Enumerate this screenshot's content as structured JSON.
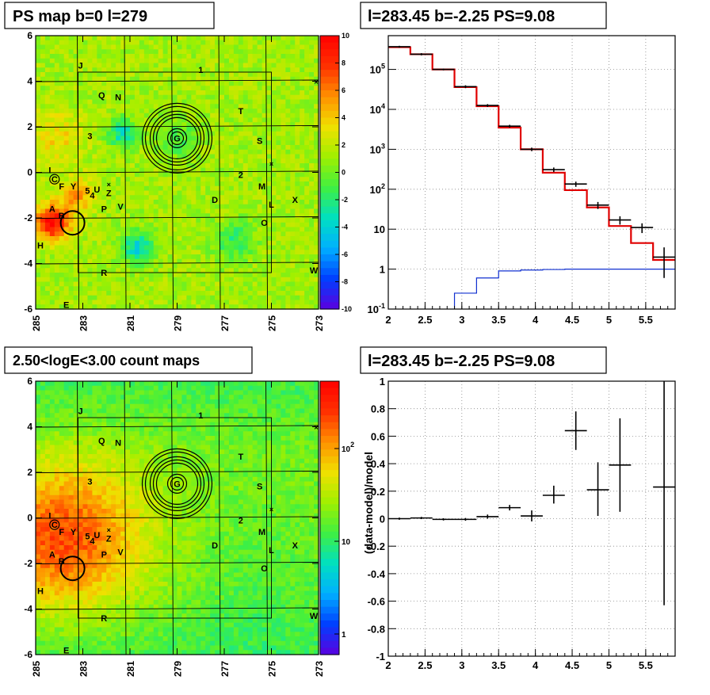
{
  "panels": {
    "tl": {
      "title": "PS map b=0 l=279"
    },
    "tr": {
      "title": "l=283.45 b=-2.25 PS=9.08"
    },
    "bl": {
      "title": "2.50<logE<3.00 count maps"
    },
    "br": {
      "title": "l=283.45 b=-2.25 PS=9.08"
    }
  },
  "chart_data": [
    {
      "type": "heatmap",
      "title": "PS map b=0 l=279",
      "x_ticks": [
        "285",
        "283",
        "281",
        "279",
        "277",
        "275",
        "273"
      ],
      "y_ticks": [
        "6",
        "4",
        "2",
        "0",
        "-2",
        "-4",
        "-6"
      ],
      "xlim": [
        285,
        273
      ],
      "ylim": [
        -6,
        6
      ],
      "colorbar": {
        "min": -10,
        "max": 10,
        "ticks": [
          "10",
          "8",
          "6",
          "4",
          "2",
          "0",
          "-2",
          "-4",
          "-6",
          "-8",
          "-10"
        ]
      },
      "colors": [
        "#5a00e0",
        "#0040ff",
        "#00b0ff",
        "#00e0c0",
        "#40f040",
        "#a0f000",
        "#f0e000",
        "#ff9000",
        "#ff3000",
        "#ff0000"
      ],
      "source_labels": [
        {
          "text": "J",
          "l": 283.1,
          "b": 4.7
        },
        {
          "text": "1",
          "l": 278.0,
          "b": 4.5
        },
        {
          "text": "Q",
          "l": 282.2,
          "b": 3.4
        },
        {
          "text": "N",
          "l": 281.5,
          "b": 3.3
        },
        {
          "text": "T",
          "l": 276.3,
          "b": 2.7
        },
        {
          "text": "3",
          "l": 282.7,
          "b": 1.6
        },
        {
          "text": "G",
          "l": 279.0,
          "b": 1.5
        },
        {
          "text": "S",
          "l": 275.5,
          "b": 1.4
        },
        {
          "text": "I",
          "l": 284.4,
          "b": 0.1
        },
        {
          "text": "C",
          "l": 284.2,
          "b": -0.3
        },
        {
          "text": "2",
          "l": 276.3,
          "b": -0.1
        },
        {
          "text": "F",
          "l": 283.9,
          "b": -0.6
        },
        {
          "text": "Y",
          "l": 283.4,
          "b": -0.6
        },
        {
          "text": "M",
          "l": 275.4,
          "b": -0.6
        },
        {
          "text": "5",
          "l": 282.8,
          "b": -0.8
        },
        {
          "text": "U",
          "l": 282.4,
          "b": -0.75
        },
        {
          "text": "4",
          "l": 282.6,
          "b": -1.0
        },
        {
          "text": "Z",
          "l": 281.9,
          "b": -0.9
        },
        {
          "text": "D",
          "l": 277.4,
          "b": -1.2
        },
        {
          "text": "L",
          "l": 275.0,
          "b": -1.4
        },
        {
          "text": "X",
          "l": 274.0,
          "b": -1.2
        },
        {
          "text": "P",
          "l": 282.1,
          "b": -1.6
        },
        {
          "text": "V",
          "l": 281.4,
          "b": -1.5
        },
        {
          "text": "A",
          "l": 284.3,
          "b": -1.6
        },
        {
          "text": "B",
          "l": 283.9,
          "b": -1.9
        },
        {
          "text": "O",
          "l": 275.3,
          "b": -2.2
        },
        {
          "text": "H",
          "l": 284.8,
          "b": -3.2
        },
        {
          "text": "R",
          "l": 282.1,
          "b": -4.4
        },
        {
          "text": "W",
          "l": 273.2,
          "b": -4.3
        },
        {
          "text": "E",
          "l": 283.7,
          "b": -5.8
        }
      ],
      "circles": [
        {
          "l": 279.0,
          "b": 1.5
        },
        {
          "l": 283.5,
          "b": -2.25
        }
      ]
    },
    {
      "type": "line",
      "title": "l=283.45 b=-2.25 PS=9.08",
      "x_ticks": [
        "2",
        "2.5",
        "3",
        "3.5",
        "4",
        "4.5",
        "5",
        "5.5"
      ],
      "y_ticks": [
        "10^5",
        "10^4",
        "10^3",
        "10^2",
        "10",
        "1",
        "10^-1"
      ],
      "xlim": [
        2,
        5.9
      ],
      "ylim": [
        0.1,
        700000
      ],
      "log_y": true,
      "grid": true,
      "model_bins": [
        2.0,
        2.3,
        2.6,
        2.9,
        3.2,
        3.5,
        3.8,
        4.1,
        4.4,
        4.7,
        5.0,
        5.3,
        5.6,
        5.9
      ],
      "model_red": [
        360000,
        240000,
        100000,
        36000,
        12000,
        3500,
        1000,
        260,
        95,
        35,
        12,
        4.5,
        1.7
      ],
      "model_blue": [
        0.0001,
        0.0001,
        0.0001,
        0.25,
        0.6,
        0.9,
        0.95,
        0.98,
        1.0,
        1.0,
        1.0,
        1.0,
        1.0
      ],
      "data_points": [
        {
          "x": 2.15,
          "y": 370000,
          "lo": 350000,
          "hi": 390000
        },
        {
          "x": 2.45,
          "y": 240000,
          "lo": 225000,
          "hi": 255000
        },
        {
          "x": 2.75,
          "y": 100000,
          "lo": 95000,
          "hi": 105000
        },
        {
          "x": 3.05,
          "y": 37000,
          "lo": 34000,
          "hi": 40000
        },
        {
          "x": 3.35,
          "y": 12500,
          "lo": 11500,
          "hi": 13500
        },
        {
          "x": 3.65,
          "y": 3800,
          "lo": 3500,
          "hi": 4100
        },
        {
          "x": 3.95,
          "y": 1000,
          "lo": 900,
          "hi": 1100
        },
        {
          "x": 4.25,
          "y": 310,
          "lo": 270,
          "hi": 350
        },
        {
          "x": 4.55,
          "y": 135,
          "lo": 115,
          "hi": 155
        },
        {
          "x": 4.85,
          "y": 40,
          "lo": 32,
          "hi": 48
        },
        {
          "x": 5.15,
          "y": 17,
          "lo": 13,
          "hi": 21
        },
        {
          "x": 5.45,
          "y": 11,
          "lo": 8,
          "hi": 14
        },
        {
          "x": 5.75,
          "y": 2,
          "lo": 0.6,
          "hi": 3.5
        }
      ]
    },
    {
      "type": "heatmap",
      "title": "2.50<logE<3.00 count maps",
      "x_ticks": [
        "285",
        "283",
        "281",
        "279",
        "277",
        "275",
        "273"
      ],
      "y_ticks": [
        "6",
        "4",
        "2",
        "0",
        "-2",
        "-4",
        "-6"
      ],
      "xlim": [
        285,
        273
      ],
      "ylim": [
        -6,
        6
      ],
      "colorbar": {
        "log": true,
        "ticks": [
          "10^2",
          "10",
          "1"
        ]
      },
      "colors": [
        "#5a00e0",
        "#0040ff",
        "#00b0ff",
        "#00e0c0",
        "#40f040",
        "#a0f000",
        "#f0e000",
        "#ff9000",
        "#ff3000",
        "#ff0000"
      ]
    },
    {
      "type": "scatter",
      "title": "l=283.45 b=-2.25 PS=9.08",
      "ylabel": "(data-model)/model",
      "x_ticks": [
        "2",
        "2.5",
        "3",
        "3.5",
        "4",
        "4.5",
        "5",
        "5.5"
      ],
      "y_ticks": [
        "1",
        "0.8",
        "0.6",
        "0.4",
        "0.2",
        "0",
        "-0.2",
        "-0.4",
        "-0.6",
        "-0.8",
        "-1"
      ],
      "xlim": [
        2,
        5.9
      ],
      "ylim": [
        -1,
        1
      ],
      "grid": true,
      "points": [
        {
          "x": 2.15,
          "y": 0.0,
          "lo": -0.008,
          "hi": 0.008
        },
        {
          "x": 2.45,
          "y": 0.005,
          "lo": -0.003,
          "hi": 0.013
        },
        {
          "x": 2.75,
          "y": -0.005,
          "lo": -0.013,
          "hi": 0.003
        },
        {
          "x": 3.05,
          "y": -0.005,
          "lo": -0.015,
          "hi": 0.005
        },
        {
          "x": 3.35,
          "y": 0.015,
          "lo": 0.0,
          "hi": 0.03
        },
        {
          "x": 3.65,
          "y": 0.08,
          "lo": 0.06,
          "hi": 0.1
        },
        {
          "x": 3.95,
          "y": 0.02,
          "lo": -0.02,
          "hi": 0.06
        },
        {
          "x": 4.25,
          "y": 0.17,
          "lo": 0.11,
          "hi": 0.24
        },
        {
          "x": 4.55,
          "y": 0.64,
          "lo": 0.5,
          "hi": 0.78
        },
        {
          "x": 4.85,
          "y": 0.21,
          "lo": 0.02,
          "hi": 0.41
        },
        {
          "x": 5.15,
          "y": 0.39,
          "lo": 0.05,
          "hi": 0.73
        },
        {
          "x": 5.75,
          "y": 0.23,
          "lo": -0.63,
          "hi": 1.0
        }
      ]
    }
  ]
}
